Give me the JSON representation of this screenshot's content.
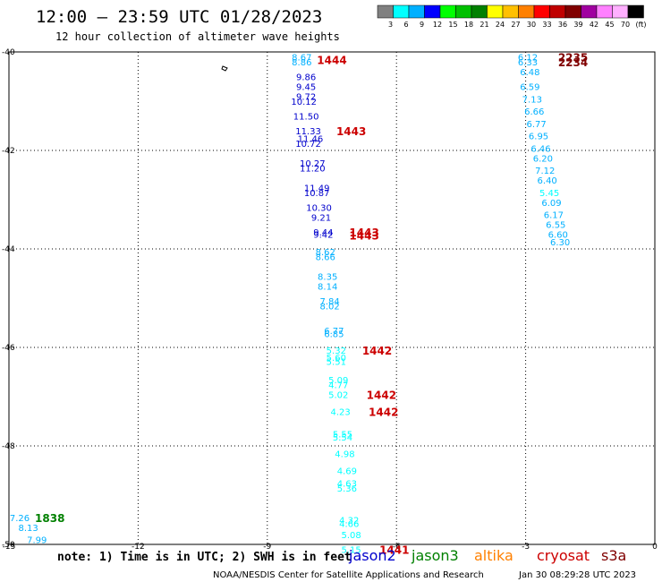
{
  "header": {
    "title": "12:00 – 23:59 UTC 01/28/2023",
    "subtitle": "12 hour collection of altimeter wave heights"
  },
  "legend": {
    "colors": [
      "#808080",
      "#00ffff",
      "#00b0ff",
      "#0000ff",
      "#00ff00",
      "#00c000",
      "#008000",
      "#ffff00",
      "#ffc000",
      "#ff8000",
      "#ff0000",
      "#c00000",
      "#800000",
      "#a000a0",
      "#ff80ff",
      "#ffb0ff",
      "#000000"
    ],
    "labels": [
      "3",
      "6",
      "9",
      "12",
      "15",
      "18",
      "21",
      "24",
      "27",
      "30",
      "33",
      "36",
      "39",
      "42",
      "45",
      "70",
      "(ft)"
    ]
  },
  "note": "note:  1) Time is in UTC; 2) SWH is in feet",
  "satellites": [
    {
      "name": "jason2",
      "color": "#0000cc"
    },
    {
      "name": "jason3",
      "color": "#008000"
    },
    {
      "name": "altika",
      "color": "#ff8000"
    },
    {
      "name": "cryosat",
      "color": "#cc0000"
    },
    {
      "name": "s3a",
      "color": "#800000"
    }
  ],
  "footer": {
    "credit": "NOAA/NESDIS Center for Satellite Applications and Research",
    "timestamp": "Jan 30 08:29:28 UTC 2023"
  },
  "chart_data": {
    "type": "scatter",
    "xlim": [
      -15,
      0
    ],
    "ylim": [
      -50,
      -40
    ],
    "xticks": [
      -15,
      -12,
      -9,
      -6,
      -3,
      0
    ],
    "yticks": [
      -40,
      -42,
      -44,
      -46,
      -48,
      -50
    ],
    "grid": true,
    "points": [
      {
        "x": -8.2,
        "y": -40.1,
        "v": "8.67",
        "c": "#00b0ff"
      },
      {
        "x": -8.2,
        "y": -40.2,
        "v": "8.86",
        "c": "#00b0ff"
      },
      {
        "x": -8.1,
        "y": -40.5,
        "v": "9.86",
        "c": "#0000cc"
      },
      {
        "x": -8.1,
        "y": -40.7,
        "v": "9.45",
        "c": "#0000cc"
      },
      {
        "x": -8.1,
        "y": -40.9,
        "v": "9.72",
        "c": "#0000cc"
      },
      {
        "x": -8.15,
        "y": -41.0,
        "v": "10.12",
        "c": "#0000cc"
      },
      {
        "x": -8.1,
        "y": -41.3,
        "v": "11.50",
        "c": "#0000cc"
      },
      {
        "x": -8.05,
        "y": -41.6,
        "v": "11.33",
        "c": "#0000cc"
      },
      {
        "x": -8.0,
        "y": -41.75,
        "v": "11.46",
        "c": "#0000cc"
      },
      {
        "x": -8.05,
        "y": -41.85,
        "v": "10.72",
        "c": "#0000cc"
      },
      {
        "x": -7.95,
        "y": -42.25,
        "v": "10.27",
        "c": "#0000cc"
      },
      {
        "x": -7.95,
        "y": -42.35,
        "v": "11.20",
        "c": "#0000cc"
      },
      {
        "x": -7.85,
        "y": -42.75,
        "v": "11.49",
        "c": "#0000cc"
      },
      {
        "x": -7.85,
        "y": -42.85,
        "v": "10.87",
        "c": "#0000cc"
      },
      {
        "x": -7.8,
        "y": -43.15,
        "v": "10.30",
        "c": "#0000cc"
      },
      {
        "x": -7.75,
        "y": -43.35,
        "v": "9.21",
        "c": "#0000cc"
      },
      {
        "x": -7.7,
        "y": -43.65,
        "v": "9.44",
        "c": "#0000cc"
      },
      {
        "x": -7.7,
        "y": -43.7,
        "v": "9.42",
        "c": "#0000cc"
      },
      {
        "x": -7.65,
        "y": -44.05,
        "v": "8.62",
        "c": "#00b0ff"
      },
      {
        "x": -7.65,
        "y": -44.15,
        "v": "8.66",
        "c": "#00b0ff"
      },
      {
        "x": -7.6,
        "y": -44.55,
        "v": "8.35",
        "c": "#00b0ff"
      },
      {
        "x": -7.6,
        "y": -44.75,
        "v": "8.14",
        "c": "#00b0ff"
      },
      {
        "x": -7.55,
        "y": -45.05,
        "v": "7.84",
        "c": "#00b0ff"
      },
      {
        "x": -7.55,
        "y": -45.15,
        "v": "8.02",
        "c": "#00b0ff"
      },
      {
        "x": -7.45,
        "y": -45.65,
        "v": "6.77",
        "c": "#00b0ff"
      },
      {
        "x": -7.45,
        "y": -45.72,
        "v": "6.85",
        "c": "#00b0ff"
      },
      {
        "x": -7.4,
        "y": -46.05,
        "v": "5.32",
        "c": "#00ffff"
      },
      {
        "x": -7.4,
        "y": -46.2,
        "v": "5.60",
        "c": "#00ffff"
      },
      {
        "x": -7.4,
        "y": -46.28,
        "v": "5.51",
        "c": "#00ffff"
      },
      {
        "x": -7.35,
        "y": -46.65,
        "v": "5.09",
        "c": "#00ffff"
      },
      {
        "x": -7.35,
        "y": -46.75,
        "v": "4.77",
        "c": "#00ffff"
      },
      {
        "x": -7.35,
        "y": -46.95,
        "v": "5.02",
        "c": "#00ffff"
      },
      {
        "x": -7.3,
        "y": -47.3,
        "v": "4.23",
        "c": "#00ffff"
      },
      {
        "x": -7.25,
        "y": -47.75,
        "v": "5.55",
        "c": "#00ffff"
      },
      {
        "x": -7.25,
        "y": -47.82,
        "v": "5.54",
        "c": "#00ffff"
      },
      {
        "x": -7.2,
        "y": -48.15,
        "v": "4.98",
        "c": "#00ffff"
      },
      {
        "x": -7.15,
        "y": -48.5,
        "v": "4.69",
        "c": "#00ffff"
      },
      {
        "x": -7.15,
        "y": -48.75,
        "v": "4.63",
        "c": "#00ffff"
      },
      {
        "x": -7.15,
        "y": -48.85,
        "v": "5.36",
        "c": "#00ffff"
      },
      {
        "x": -7.1,
        "y": -49.5,
        "v": "4.32",
        "c": "#00ffff"
      },
      {
        "x": -7.1,
        "y": -49.57,
        "v": "4.66",
        "c": "#00ffff"
      },
      {
        "x": -7.05,
        "y": -49.8,
        "v": "5.08",
        "c": "#00ffff"
      },
      {
        "x": -7.05,
        "y": -50.1,
        "v": "5.15",
        "c": "#00ffff"
      },
      {
        "x": -2.95,
        "y": -40.1,
        "v": "6.12",
        "c": "#00b0ff"
      },
      {
        "x": -2.95,
        "y": -40.2,
        "v": "6.33",
        "c": "#00b0ff"
      },
      {
        "x": -2.9,
        "y": -40.4,
        "v": "6.48",
        "c": "#00b0ff"
      },
      {
        "x": -2.9,
        "y": -40.7,
        "v": "6.59",
        "c": "#00b0ff"
      },
      {
        "x": -2.85,
        "y": -40.95,
        "v": "7.13",
        "c": "#00b0ff"
      },
      {
        "x": -2.8,
        "y": -41.2,
        "v": "6.66",
        "c": "#00b0ff"
      },
      {
        "x": -2.75,
        "y": -41.45,
        "v": "6.77",
        "c": "#00b0ff"
      },
      {
        "x": -2.7,
        "y": -41.7,
        "v": "6.95",
        "c": "#00b0ff"
      },
      {
        "x": -2.65,
        "y": -41.95,
        "v": "6.46",
        "c": "#00b0ff"
      },
      {
        "x": -2.6,
        "y": -42.15,
        "v": "6.20",
        "c": "#00b0ff"
      },
      {
        "x": -2.55,
        "y": -42.4,
        "v": "7.12",
        "c": "#00b0ff"
      },
      {
        "x": -2.5,
        "y": -42.6,
        "v": "6.40",
        "c": "#00b0ff"
      },
      {
        "x": -2.45,
        "y": -42.85,
        "v": "5.45",
        "c": "#00ffff"
      },
      {
        "x": -2.4,
        "y": -43.05,
        "v": "6.09",
        "c": "#00b0ff"
      },
      {
        "x": -2.35,
        "y": -43.3,
        "v": "6.17",
        "c": "#00b0ff"
      },
      {
        "x": -2.3,
        "y": -43.5,
        "v": "6.55",
        "c": "#00b0ff"
      },
      {
        "x": -2.25,
        "y": -43.7,
        "v": "6.60",
        "c": "#00b0ff"
      },
      {
        "x": -2.2,
        "y": -43.85,
        "v": "6.30",
        "c": "#00b0ff"
      },
      {
        "x": -14.75,
        "y": -49.45,
        "v": "7.26",
        "c": "#00b0ff"
      },
      {
        "x": -14.55,
        "y": -49.65,
        "v": "8.13",
        "c": "#00b0ff"
      },
      {
        "x": -14.35,
        "y": -49.9,
        "v": "7.99",
        "c": "#00b0ff"
      }
    ],
    "time_labels": [
      {
        "x": -7.5,
        "y": -40.15,
        "t": "1444",
        "c": "#cc0000"
      },
      {
        "x": -7.05,
        "y": -41.6,
        "t": "1443",
        "c": "#cc0000"
      },
      {
        "x": -6.75,
        "y": -43.65,
        "t": "1443",
        "c": "#cc0000"
      },
      {
        "x": -6.75,
        "y": -43.72,
        "t": "1443",
        "c": "#cc0000"
      },
      {
        "x": -6.45,
        "y": -46.05,
        "t": "1442",
        "c": "#cc0000"
      },
      {
        "x": -6.35,
        "y": -46.95,
        "t": "1442",
        "c": "#cc0000"
      },
      {
        "x": -6.3,
        "y": -47.3,
        "t": "1442",
        "c": "#cc0000"
      },
      {
        "x": -6.05,
        "y": -50.1,
        "t": "1441",
        "c": "#cc0000"
      },
      {
        "x": -1.9,
        "y": -40.1,
        "t": "2235",
        "c": "#800000"
      },
      {
        "x": -1.9,
        "y": -40.2,
        "t": "2234",
        "c": "#800000"
      },
      {
        "x": -14.05,
        "y": -49.45,
        "t": "1838",
        "c": "#008000"
      }
    ]
  }
}
